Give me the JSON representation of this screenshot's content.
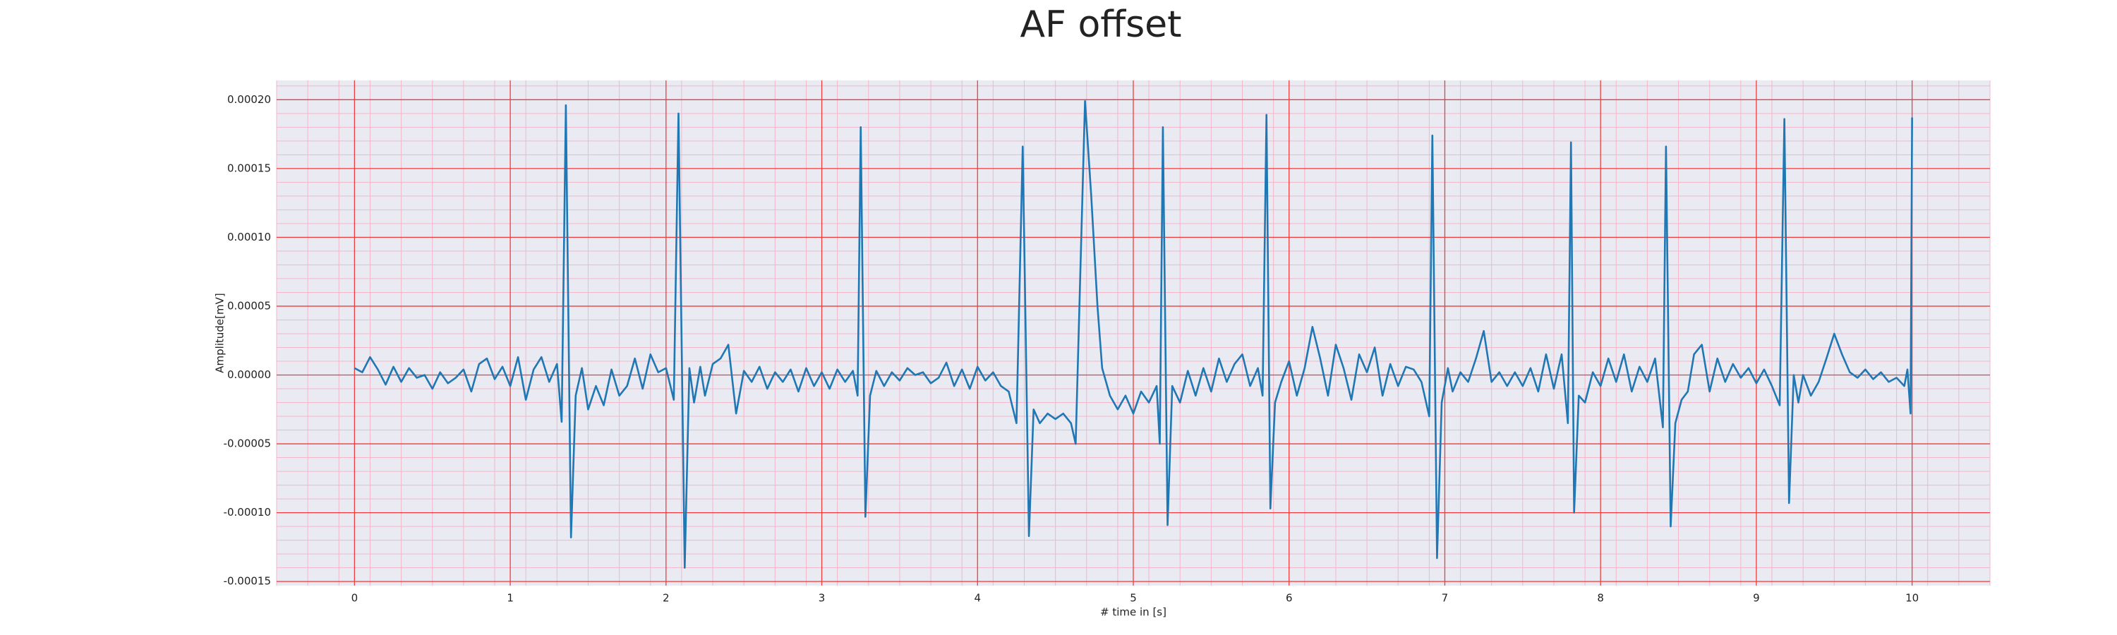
{
  "chart_data": {
    "type": "line",
    "title": "AF offset",
    "x_label": "# time in [s]",
    "y_label": "Amplitude[mV]",
    "color": "#1f77b4",
    "grid": true,
    "minor_grid": true,
    "xlim": [
      -0.5,
      10.5
    ],
    "ylim": [
      -0.000153,
      0.000214
    ],
    "xticks": [
      0,
      1,
      2,
      3,
      4,
      5,
      6,
      7,
      8,
      9,
      10
    ],
    "yticks": [
      {
        "value": 0.0002,
        "label": "0.00020"
      },
      {
        "value": 0.00015,
        "label": "0.00015"
      },
      {
        "value": 0.0001,
        "label": "0.00010"
      },
      {
        "value": 5e-05,
        "label": "0.00005"
      },
      {
        "value": 0,
        "label": "0.00000"
      },
      {
        "value": -5e-05,
        "label": "-0.00005"
      },
      {
        "value": -0.0001,
        "label": "-0.00010"
      },
      {
        "value": -0.00015,
        "label": "-0.00015"
      }
    ],
    "x": [
      0,
      0.05,
      0.1,
      0.15,
      0.2,
      0.25,
      0.3,
      0.35,
      0.4,
      0.45,
      0.5,
      0.55,
      0.6,
      0.65,
      0.7,
      0.75,
      0.8,
      0.85,
      0.9,
      0.95,
      1.0,
      1.05,
      1.1,
      1.15,
      1.2,
      1.25,
      1.3,
      1.33,
      1.357,
      1.39,
      1.42,
      1.46,
      1.5,
      1.55,
      1.6,
      1.65,
      1.7,
      1.75,
      1.8,
      1.85,
      1.9,
      1.95,
      2.0,
      2.05,
      2.08,
      2.12,
      2.15,
      2.18,
      2.22,
      2.25,
      2.3,
      2.35,
      2.4,
      2.45,
      2.5,
      2.55,
      2.6,
      2.65,
      2.7,
      2.75,
      2.8,
      2.85,
      2.9,
      2.95,
      3.0,
      3.05,
      3.1,
      3.15,
      3.2,
      3.23,
      3.25,
      3.28,
      3.31,
      3.35,
      3.4,
      3.45,
      3.5,
      3.55,
      3.6,
      3.65,
      3.7,
      3.75,
      3.8,
      3.85,
      3.9,
      3.95,
      4.0,
      4.05,
      4.1,
      4.15,
      4.2,
      4.25,
      4.29,
      4.33,
      4.36,
      4.4,
      4.45,
      4.5,
      4.55,
      4.6,
      4.63,
      4.69,
      4.73,
      4.77,
      4.8,
      4.85,
      4.9,
      4.95,
      5.0,
      5.05,
      5.1,
      5.15,
      5.17,
      5.19,
      5.22,
      5.25,
      5.3,
      5.35,
      5.4,
      5.45,
      5.5,
      5.55,
      5.6,
      5.65,
      5.7,
      5.75,
      5.8,
      5.83,
      5.855,
      5.88,
      5.91,
      5.95,
      6.0,
      6.05,
      6.1,
      6.15,
      6.2,
      6.25,
      6.3,
      6.35,
      6.4,
      6.45,
      6.5,
      6.55,
      6.6,
      6.65,
      6.7,
      6.75,
      6.8,
      6.85,
      6.9,
      6.92,
      6.95,
      6.98,
      7.02,
      7.05,
      7.1,
      7.15,
      7.2,
      7.25,
      7.3,
      7.35,
      7.4,
      7.45,
      7.5,
      7.55,
      7.6,
      7.65,
      7.7,
      7.75,
      7.79,
      7.81,
      7.83,
      7.86,
      7.9,
      7.95,
      8.0,
      8.05,
      8.1,
      8.15,
      8.2,
      8.25,
      8.3,
      8.35,
      8.4,
      8.42,
      8.45,
      8.48,
      8.52,
      8.56,
      8.6,
      8.65,
      8.7,
      8.75,
      8.8,
      8.85,
      8.9,
      8.95,
      9.0,
      9.05,
      9.1,
      9.15,
      9.18,
      9.21,
      9.24,
      9.27,
      9.3,
      9.35,
      9.4,
      9.45,
      9.5,
      9.55,
      9.6,
      9.65,
      9.7,
      9.75,
      9.8,
      9.85,
      9.9,
      9.95,
      9.97,
      9.99,
      10.0
    ],
    "values": [
      5e-06,
      2e-06,
      1.3e-05,
      4e-06,
      -7e-06,
      6e-06,
      -5e-06,
      5e-06,
      -2e-06,
      0,
      -1e-05,
      2e-06,
      -6e-06,
      -2e-06,
      4e-06,
      -1.2e-05,
      8e-06,
      1.2e-05,
      -3e-06,
      6e-06,
      -8e-06,
      1.3e-05,
      -1.8e-05,
      4e-06,
      1.3e-05,
      -5e-06,
      8e-06,
      -3.4e-05,
      0.000196,
      -0.000118,
      -1.5e-05,
      5e-06,
      -2.5e-05,
      -8e-06,
      -2.2e-05,
      4e-06,
      -1.5e-05,
      -8e-06,
      1.2e-05,
      -1e-05,
      1.5e-05,
      2e-06,
      5e-06,
      -1.8e-05,
      0.00019,
      -0.00014,
      5e-06,
      -2e-05,
      6e-06,
      -1.5e-05,
      8e-06,
      1.2e-05,
      2.2e-05,
      -2.8e-05,
      3e-06,
      -5e-06,
      6e-06,
      -1e-05,
      2e-06,
      -5e-06,
      4e-06,
      -1.2e-05,
      5e-06,
      -8e-06,
      2e-06,
      -1e-05,
      4e-06,
      -5e-06,
      3e-06,
      -1.5e-05,
      0.00018,
      -0.000103,
      -1.5e-05,
      3e-06,
      -8e-06,
      2e-06,
      -4e-06,
      5e-06,
      0,
      2e-06,
      -6e-06,
      -2e-06,
      9e-06,
      -8e-06,
      4e-06,
      -1e-05,
      6e-06,
      -4e-06,
      2e-06,
      -8e-06,
      -1.2e-05,
      -3.5e-05,
      0.000166,
      -0.000117,
      -2.5e-05,
      -3.5e-05,
      -2.8e-05,
      -3.2e-05,
      -2.8e-05,
      -3.5e-05,
      -5e-05,
      0.000199,
      0.00013,
      5e-05,
      5e-06,
      -1.5e-05,
      -2.5e-05,
      -1.5e-05,
      -2.8e-05,
      -1.2e-05,
      -2e-05,
      -8e-06,
      -5e-05,
      0.00018,
      -0.000109,
      -8e-06,
      -2e-05,
      3e-06,
      -1.5e-05,
      5e-06,
      -1.2e-05,
      1.2e-05,
      -5e-06,
      8e-06,
      1.5e-05,
      -8e-06,
      5e-06,
      -1.5e-05,
      0.000189,
      -9.7e-05,
      -2e-05,
      -5e-06,
      1e-05,
      -1.5e-05,
      5e-06,
      3.5e-05,
      1.2e-05,
      -1.5e-05,
      2.2e-05,
      5e-06,
      -1.8e-05,
      1.5e-05,
      2e-06,
      2e-05,
      -1.5e-05,
      8e-06,
      -8e-06,
      6e-06,
      4e-06,
      -5e-06,
      -3e-05,
      0.000174,
      -0.000133,
      -2e-05,
      5e-06,
      -1.2e-05,
      2e-06,
      -5e-06,
      1.2e-05,
      3.2e-05,
      -5e-06,
      2e-06,
      -8e-06,
      2e-06,
      -8e-06,
      5e-06,
      -1.2e-05,
      1.5e-05,
      -1e-05,
      1.5e-05,
      -3.5e-05,
      0.000169,
      -0.0001,
      -1.5e-05,
      -2e-05,
      2e-06,
      -8e-06,
      1.2e-05,
      -5e-06,
      1.5e-05,
      -1.2e-05,
      6e-06,
      -5e-06,
      1.2e-05,
      -3.8e-05,
      0.000166,
      -0.00011,
      -3.5e-05,
      -1.8e-05,
      -1.2e-05,
      1.5e-05,
      2.2e-05,
      -1.2e-05,
      1.2e-05,
      -5e-06,
      8e-06,
      -2e-06,
      5e-06,
      -6e-06,
      4e-06,
      -8e-06,
      -2.2e-05,
      0.000186,
      -9.3e-05,
      0,
      -2e-05,
      0,
      -1.5e-05,
      -5e-06,
      1.2e-05,
      3e-05,
      1.5e-05,
      2e-06,
      -2e-06,
      4e-06,
      -3e-06,
      2e-06,
      -5e-06,
      -2e-06,
      -8e-06,
      4e-06,
      -2.8e-05,
      0.000187
    ]
  }
}
